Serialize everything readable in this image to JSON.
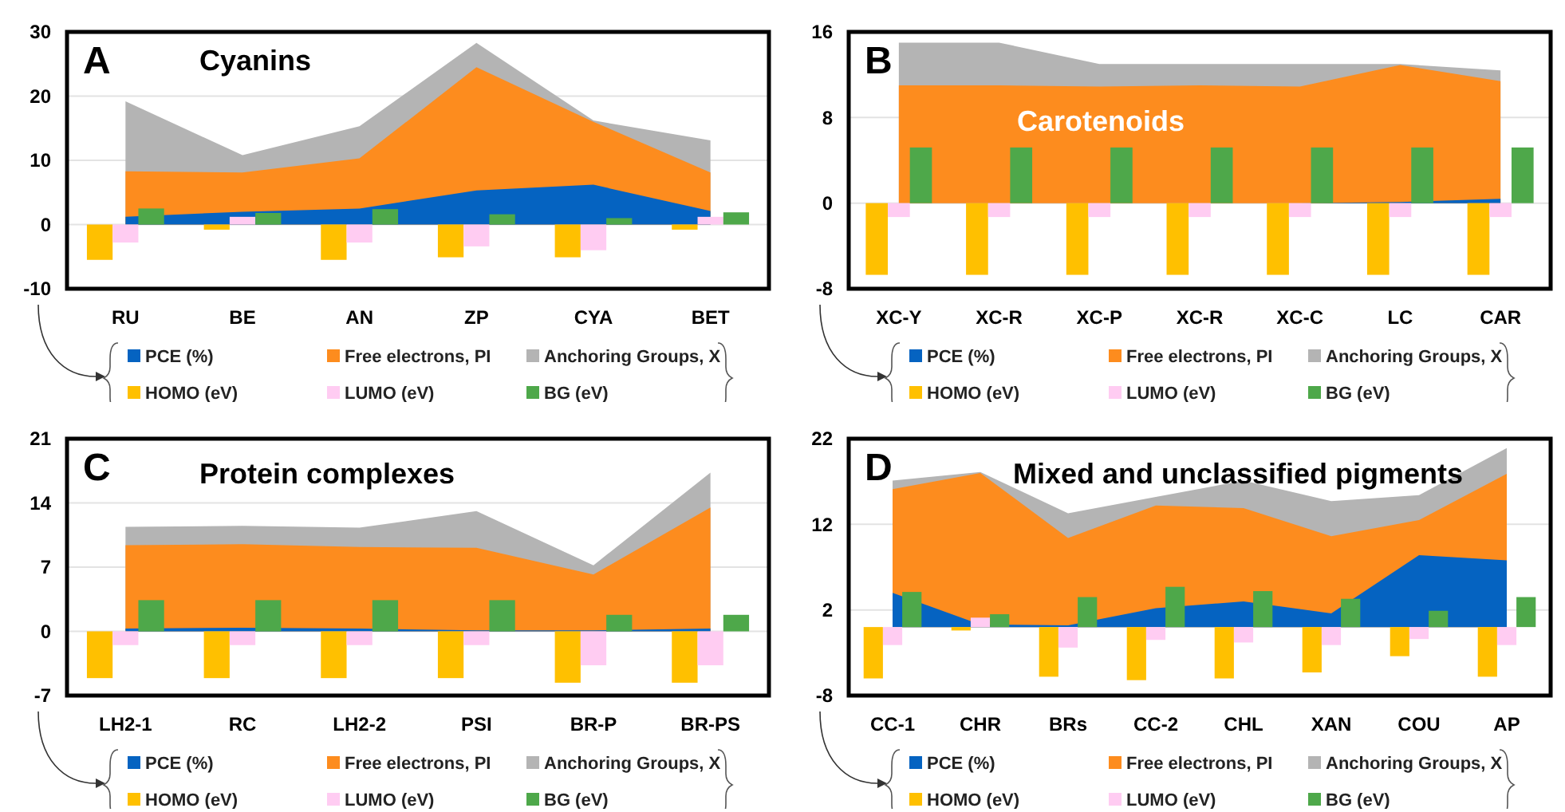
{
  "chart_data": [
    {
      "type": "area",
      "title": "Cyanins",
      "annotations": [
        "A"
      ],
      "categories": [
        "RU",
        "BE",
        "AN",
        "ZP",
        "CYA",
        "BET"
      ],
      "ylim": [
        -10,
        30
      ],
      "yticks": [
        -10,
        0,
        10,
        20,
        30
      ],
      "grid": "y",
      "legend": "bottom",
      "series": [
        {
          "name": "PCE (%)",
          "color": "#0563c1",
          "values": [
            1.2,
            2.0,
            2.5,
            5.3,
            6.2,
            2.1
          ]
        },
        {
          "name": "Free electrons, PI",
          "color": "#fd8c1e",
          "values": [
            8.3,
            8.1,
            10.3,
            24.5,
            16.0,
            8.1
          ]
        },
        {
          "name": "Anchoring Groups, X",
          "color": "#b4b4b4",
          "values": [
            19.2,
            10.8,
            15.3,
            28.3,
            16.2,
            13.1
          ]
        },
        {
          "name": "HOMO (eV)",
          "type": "bar",
          "color": "#ffc000",
          "values": [
            -5.5,
            -0.8,
            -5.5,
            -5.1,
            -5.1,
            -0.8
          ]
        },
        {
          "name": "LUMO (eV)",
          "type": "bar",
          "color": "#ffccf2",
          "values": [
            -2.8,
            1.2,
            -2.8,
            -3.4,
            -4.0,
            1.2
          ]
        },
        {
          "name": "BG (eV)",
          "type": "bar",
          "color": "#4ea84a",
          "values": [
            2.5,
            1.8,
            2.4,
            1.6,
            1.0,
            1.9
          ]
        }
      ]
    },
    {
      "type": "area",
      "title": "Carotenoids",
      "annotations": [
        "B"
      ],
      "categories": [
        "XC-Y",
        "XC-R",
        "XC-P",
        "XC-R",
        "XC-C",
        "LC",
        "CAR"
      ],
      "ylim": [
        -8,
        16
      ],
      "yticks": [
        -8,
        0,
        8,
        16
      ],
      "grid": "y",
      "legend": "bottom",
      "series": [
        {
          "name": "PCE (%)",
          "color": "#0563c1",
          "values": [
            0,
            0,
            0,
            0,
            0,
            0.1,
            0.4
          ]
        },
        {
          "name": "Free electrons, PI",
          "color": "#fd8c1e",
          "values": [
            11.0,
            11.0,
            10.9,
            11.0,
            10.9,
            12.9,
            11.4
          ]
        },
        {
          "name": "Anchoring Groups, X",
          "color": "#b4b4b4",
          "values": [
            15.0,
            15.0,
            13.0,
            13.0,
            13.0,
            13.0,
            12.4
          ]
        },
        {
          "name": "HOMO (eV)",
          "type": "bar",
          "color": "#ffc000",
          "values": [
            -6.7,
            -6.7,
            -6.7,
            -6.7,
            -6.7,
            -6.7,
            -6.7
          ]
        },
        {
          "name": "LUMO (eV)",
          "type": "bar",
          "color": "#ffccf2",
          "values": [
            -1.3,
            -1.3,
            -1.3,
            -1.3,
            -1.3,
            -1.3,
            -1.3
          ]
        },
        {
          "name": "BG (eV)",
          "type": "bar",
          "color": "#4ea84a",
          "values": [
            5.2,
            5.2,
            5.2,
            5.2,
            5.2,
            5.2,
            5.2
          ]
        }
      ]
    },
    {
      "type": "area",
      "title": "Protein complexes",
      "annotations": [
        "C"
      ],
      "categories": [
        "LH2-1",
        "RC",
        "LH2-2",
        "PSI",
        "BR-P",
        "BR-PS"
      ],
      "ylim": [
        -7,
        21
      ],
      "yticks": [
        -7,
        0,
        7,
        14,
        21
      ],
      "grid": "y",
      "legend": "bottom",
      "series": [
        {
          "name": "PCE (%)",
          "color": "#0563c1",
          "values": [
            0.3,
            0.4,
            0.3,
            0.1,
            0.1,
            0.3
          ]
        },
        {
          "name": "Free electrons, PI",
          "color": "#fd8c1e",
          "values": [
            9.4,
            9.5,
            9.2,
            9.1,
            6.2,
            13.5
          ]
        },
        {
          "name": "Anchoring Groups, X",
          "color": "#b4b4b4",
          "values": [
            11.4,
            11.5,
            11.3,
            13.1,
            7.2,
            17.3
          ]
        },
        {
          "name": "HOMO (eV)",
          "type": "bar",
          "color": "#ffc000",
          "values": [
            -5.1,
            -5.1,
            -5.1,
            -5.1,
            -5.6,
            -5.6
          ]
        },
        {
          "name": "LUMO (eV)",
          "type": "bar",
          "color": "#ffccf2",
          "values": [
            -1.5,
            -1.5,
            -1.5,
            -1.5,
            -3.7,
            -3.7
          ]
        },
        {
          "name": "BG (eV)",
          "type": "bar",
          "color": "#4ea84a",
          "values": [
            3.4,
            3.4,
            3.4,
            3.4,
            1.8,
            1.8
          ]
        }
      ]
    },
    {
      "type": "area",
      "title": "Mixed and unclassified pigments",
      "annotations": [
        "D"
      ],
      "categories": [
        "CC-1",
        "CHR",
        "BRs",
        "CC-2",
        "CHL",
        "XAN",
        "COU",
        "AP"
      ],
      "ylim": [
        -8,
        22
      ],
      "yticks": [
        -8,
        2,
        12,
        22
      ],
      "grid": "y",
      "legend": "bottom",
      "series": [
        {
          "name": "PCE (%)",
          "color": "#0563c1",
          "values": [
            4.0,
            0.3,
            0.2,
            2.2,
            3.0,
            1.6,
            8.4,
            7.8
          ]
        },
        {
          "name": "Free electrons, PI",
          "color": "#fd8c1e",
          "values": [
            16.1,
            18.0,
            10.4,
            14.2,
            13.9,
            10.6,
            12.5,
            17.9
          ]
        },
        {
          "name": "Anchoring Groups, X",
          "color": "#b4b4b4",
          "values": [
            17.1,
            18.1,
            13.3,
            15.2,
            17.1,
            14.7,
            15.4,
            20.9
          ]
        },
        {
          "name": "HOMO (eV)",
          "type": "bar",
          "color": "#ffc000",
          "values": [
            -6.0,
            -0.4,
            -5.8,
            -6.2,
            -6.0,
            -5.3,
            -3.4,
            -5.8
          ]
        },
        {
          "name": "LUMO (eV)",
          "type": "bar",
          "color": "#ffccf2",
          "values": [
            -2.1,
            1.1,
            -2.4,
            -1.5,
            -1.8,
            -2.1,
            -1.4,
            -2.1
          ]
        },
        {
          "name": "BG (eV)",
          "type": "bar",
          "color": "#4ea84a",
          "values": [
            4.1,
            1.5,
            3.5,
            4.7,
            4.2,
            3.3,
            1.9,
            3.5
          ]
        }
      ]
    }
  ]
}
